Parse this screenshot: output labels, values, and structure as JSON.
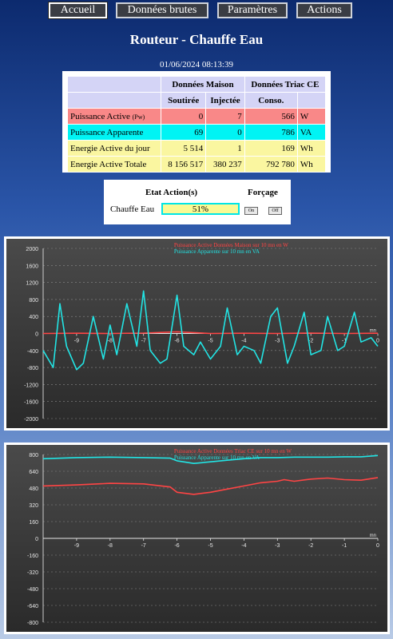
{
  "nav": {
    "items": [
      "Accueil",
      "Données brutes",
      "Paramètres",
      "Actions"
    ]
  },
  "header": {
    "title": "Routeur - Chauffe Eau",
    "datetime": "01/06/2024 08:13:39"
  },
  "table": {
    "group_headers": [
      "Données Maison",
      "Données Triac CE"
    ],
    "sub_headers": [
      "Soutirée",
      "Injectée",
      "Conso."
    ],
    "rows": [
      {
        "label": "Puissance Active ",
        "label_small": "(Pw)",
        "soutiree": "0",
        "injectee": "7",
        "conso": "566",
        "unit": "W",
        "color": "#f98888"
      },
      {
        "label": "Puissance Apparente",
        "label_small": "",
        "soutiree": "69",
        "injectee": "0",
        "conso": "786",
        "unit": "VA",
        "color": "#00f4f4"
      },
      {
        "label": "Energie Active du jour",
        "label_small": "",
        "soutiree": "5 514",
        "injectee": "1",
        "conso": "169",
        "unit": "Wh",
        "color": "#faf6a0"
      },
      {
        "label": "Energie Active Totale",
        "label_small": "",
        "soutiree": "8 156 517",
        "injectee": "380 237",
        "conso": "792 780",
        "unit": "Wh",
        "color": "#faf6a0"
      }
    ]
  },
  "actions": {
    "header_state": "Etat Action(s)",
    "header_force": "Forçage",
    "label": "Chauffe Eau",
    "percent": "51%",
    "on_label": "On",
    "off_label": "Off"
  },
  "colors": {
    "active_power": "#ff4444",
    "apparent_power": "#22e4e4",
    "chart_bg": "#3c3c3c"
  },
  "chart_data": [
    {
      "type": "line",
      "legend": [
        "Puissance Active Données Maison sur 10 mn en W",
        "Puissance Apparente sur 10 mn en VA"
      ],
      "legend_placement": "top-center",
      "ylim": [
        -2000,
        2000
      ],
      "y_ticks": [
        "2000",
        "1600",
        "1200",
        "800",
        "400",
        "0",
        "-400",
        "-800",
        "-1200",
        "-1600",
        "-2000"
      ],
      "x_ticks": [
        "-9",
        "-8",
        "-7",
        "-6",
        "-5",
        "-4",
        "-3",
        "-2",
        "-1",
        "0"
      ],
      "x_unit": "mn",
      "grid": true,
      "series": [
        {
          "name": "Puissance Active Données Maison sur 10 mn en W",
          "color": "#ff4444",
          "x": [
            -10,
            -9,
            -8,
            -7,
            -6,
            -5,
            -4,
            -3,
            -2,
            -1,
            0
          ],
          "y": [
            0,
            5,
            0,
            10,
            40,
            0,
            5,
            0,
            10,
            0,
            5
          ]
        },
        {
          "name": "Puissance Apparente sur 10 mn en VA",
          "color": "#22e4e4",
          "x": [
            -10,
            -9.7,
            -9.5,
            -9.3,
            -9,
            -8.8,
            -8.5,
            -8.2,
            -8,
            -7.8,
            -7.5,
            -7.2,
            -7,
            -6.8,
            -6.5,
            -6.3,
            -6,
            -5.8,
            -5.5,
            -5.3,
            -5,
            -4.7,
            -4.5,
            -4.2,
            -4,
            -3.7,
            -3.5,
            -3.2,
            -3,
            -2.7,
            -2.5,
            -2.2,
            -2,
            -1.7,
            -1.5,
            -1.2,
            -1,
            -0.7,
            -0.5,
            -0.2,
            0
          ],
          "y": [
            -400,
            -800,
            700,
            -300,
            -850,
            -700,
            400,
            -600,
            200,
            -500,
            700,
            -300,
            1000,
            -400,
            -700,
            -600,
            900,
            -300,
            -500,
            -200,
            -600,
            -300,
            600,
            -500,
            -300,
            -400,
            -700,
            400,
            600,
            -700,
            -300,
            500,
            -500,
            -400,
            400,
            -400,
            -300,
            500,
            -200,
            -100,
            -300
          ]
        }
      ]
    },
    {
      "type": "line",
      "legend": [
        "Puissance Active Données Triac CE sur 10 mn en W",
        "Puissance Apparente sur 10 mn en VA"
      ],
      "legend_placement": "top-center",
      "ylim": [
        -800,
        800
      ],
      "y_ticks": [
        "800",
        "640",
        "480",
        "320",
        "160",
        "0",
        "-160",
        "-320",
        "-480",
        "-640",
        "-800"
      ],
      "x_ticks": [
        "-9",
        "-8",
        "-7",
        "-6",
        "-5",
        "-4",
        "-3",
        "-2",
        "-1",
        "0"
      ],
      "x_unit": "mn",
      "grid": true,
      "series": [
        {
          "name": "Puissance Active Données Triac CE sur 10 mn en W",
          "color": "#ff4444",
          "x": [
            -10,
            -9,
            -8,
            -7,
            -6.2,
            -6,
            -5.5,
            -5,
            -4.5,
            -4,
            -3.5,
            -3,
            -2.8,
            -2.5,
            -2,
            -1.5,
            -1,
            -0.5,
            0
          ],
          "y": [
            500,
            510,
            525,
            520,
            490,
            440,
            420,
            440,
            470,
            500,
            530,
            545,
            560,
            545,
            565,
            575,
            560,
            555,
            580
          ]
        },
        {
          "name": "Puissance Apparente sur 10 mn en VA",
          "color": "#22e4e4",
          "x": [
            -10,
            -9,
            -8,
            -7,
            -6.2,
            -6,
            -5.5,
            -5,
            -4.5,
            -4,
            -3.5,
            -3,
            -2.5,
            -2,
            -1.5,
            -1,
            -0.5,
            0
          ],
          "y": [
            760,
            770,
            775,
            770,
            765,
            740,
            715,
            730,
            745,
            760,
            770,
            770,
            775,
            775,
            775,
            778,
            778,
            790
          ]
        }
      ]
    }
  ]
}
